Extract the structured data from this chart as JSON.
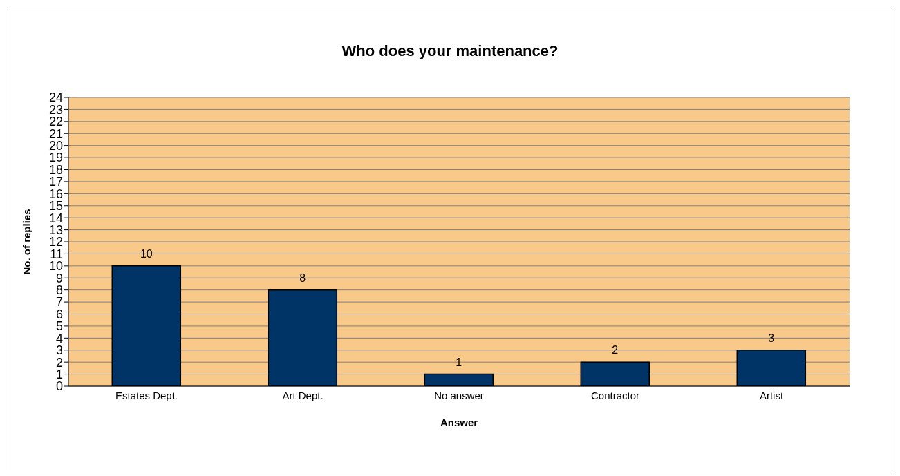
{
  "chart_data": {
    "type": "bar",
    "title": "Who does your maintenance?",
    "xlabel": "Answer",
    "ylabel": "No. of replies",
    "categories": [
      "Estates Dept.",
      "Art Dept.",
      "No answer",
      "Contractor",
      "Artist"
    ],
    "values": [
      10,
      8,
      1,
      2,
      3
    ],
    "color": "#003366",
    "ylim": [
      0,
      24
    ],
    "yticks": [
      0,
      1,
      2,
      3,
      4,
      5,
      6,
      7,
      8,
      9,
      10,
      11,
      12,
      13,
      14,
      15,
      16,
      17,
      18,
      19,
      20,
      21,
      22,
      23,
      24
    ],
    "grid": "y",
    "data_labels": true
  }
}
